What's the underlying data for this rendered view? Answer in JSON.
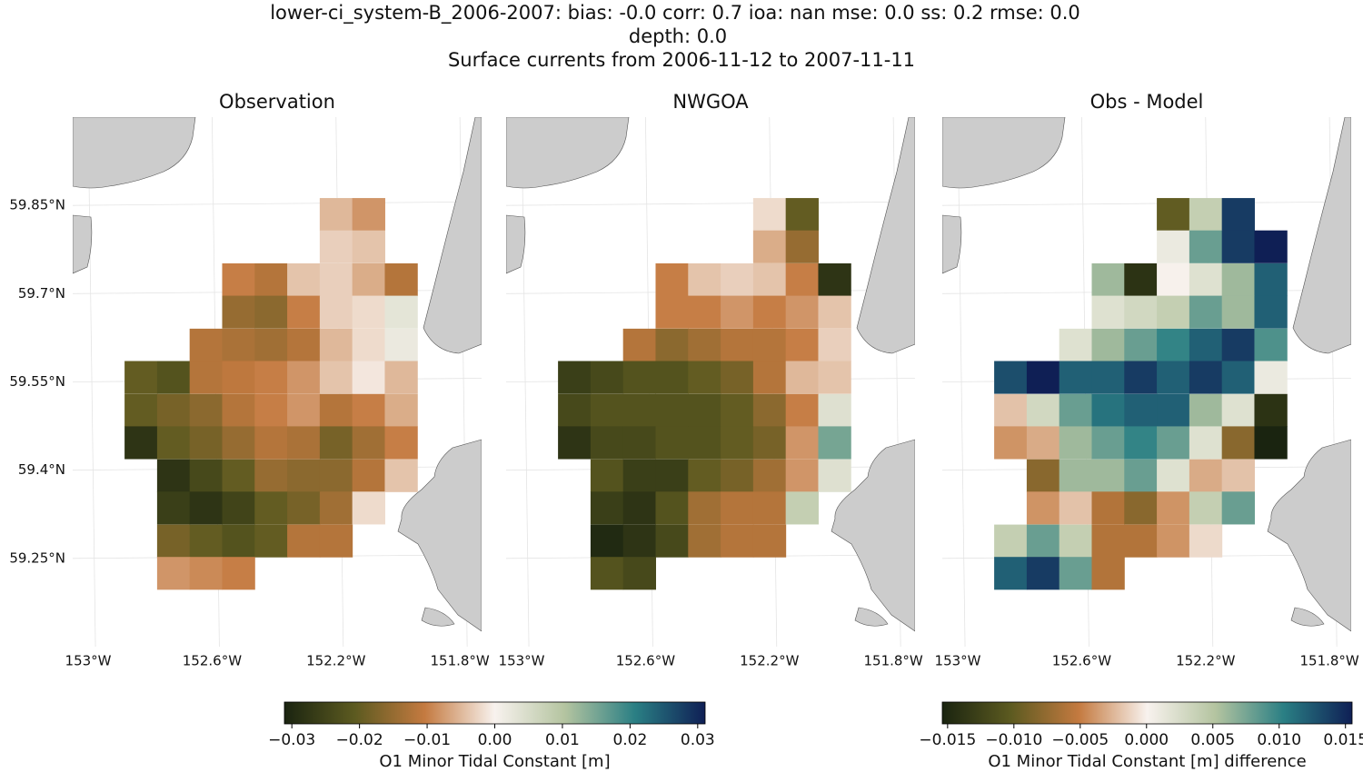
{
  "chart_data": {
    "type": "heatmap",
    "title_lines": [
      "lower-ci_system-B_2006-2007: bias: -0.0  corr: 0.7  ioa: nan  mse: 0.0  ss: 0.2  rmse: 0.0",
      "depth: 0.0",
      "Surface currents from 2006-11-12 to 2007-11-11"
    ],
    "xlim": [
      -153.05,
      -151.73
    ],
    "ylim": [
      59.1,
      60.0
    ],
    "xticks": [
      {
        "value": -153,
        "label": "153°W"
      },
      {
        "value": -152.6,
        "label": "152.6°W"
      },
      {
        "value": -152.2,
        "label": "152.2°W"
      },
      {
        "value": -151.8,
        "label": "151.8°W"
      }
    ],
    "yticks": [
      {
        "value": 59.25,
        "label": "59.25°N"
      },
      {
        "value": 59.4,
        "label": "59.4°N"
      },
      {
        "value": 59.55,
        "label": "59.55°N"
      },
      {
        "value": 59.7,
        "label": "59.7°N"
      },
      {
        "value": 59.85,
        "label": "59.85°N"
      }
    ],
    "grid": true,
    "lon": [
      -152.83,
      -152.725,
      -152.62,
      -152.515,
      -152.41,
      -152.305,
      -152.2,
      -152.095,
      -151.99
    ],
    "lat": [
      59.835,
      59.78,
      59.724,
      59.669,
      59.613,
      59.558,
      59.502,
      59.447,
      59.391,
      59.336,
      59.28,
      59.225
    ],
    "colormap": [
      "#1a2410",
      "#5c5a20",
      "#c47a40",
      "#f8f2ee",
      "#b4c4a0",
      "#2a7f84",
      "#0f1f55"
    ],
    "colorbars": [
      {
        "label": "O1 Minor Tidal Constant [m]",
        "clim": [
          -0.0311,
          0.0311
        ],
        "ticks": [
          {
            "value": -0.03,
            "label": "−0.03"
          },
          {
            "value": -0.02,
            "label": "−0.02"
          },
          {
            "value": -0.01,
            "label": "−0.01"
          },
          {
            "value": 0,
            "label": "0.00"
          },
          {
            "value": 0.01,
            "label": "0.01"
          },
          {
            "value": 0.02,
            "label": "0.02"
          },
          {
            "value": 0.03,
            "label": "0.03"
          }
        ]
      },
      {
        "label": "O1 Minor Tidal Constant [m] difference",
        "clim": [
          -0.0154,
          0.0155
        ],
        "ticks": [
          {
            "value": -0.015,
            "label": "−0.015"
          },
          {
            "value": -0.01,
            "label": "−0.010"
          },
          {
            "value": -0.005,
            "label": "−0.005"
          },
          {
            "value": 0,
            "label": "0.000"
          },
          {
            "value": 0.005,
            "label": "0.005"
          },
          {
            "value": 0.01,
            "label": "0.010"
          },
          {
            "value": 0.015,
            "label": "0.015"
          }
        ]
      }
    ],
    "panels": [
      {
        "title": "Observation",
        "colorbar": 0,
        "values": [
          [
            null,
            null,
            null,
            null,
            null,
            null,
            -0.005,
            -0.008,
            null
          ],
          [
            null,
            null,
            null,
            null,
            null,
            null,
            -0.003,
            -0.004,
            null
          ],
          [
            null,
            null,
            null,
            -0.01,
            -0.012,
            -0.004,
            -0.003,
            -0.006,
            -0.012
          ],
          [
            null,
            null,
            null,
            -0.015,
            -0.016,
            -0.01,
            -0.003,
            -0.002,
            0.003
          ],
          [
            null,
            null,
            -0.012,
            -0.013,
            -0.014,
            -0.012,
            -0.005,
            -0.002,
            0.002
          ],
          [
            -0.02,
            -0.022,
            -0.012,
            -0.011,
            -0.01,
            -0.008,
            -0.004,
            -0.001,
            -0.005
          ],
          [
            -0.02,
            -0.018,
            -0.016,
            -0.012,
            -0.01,
            -0.008,
            -0.012,
            -0.01,
            -0.006
          ],
          [
            -0.028,
            -0.02,
            -0.018,
            -0.015,
            -0.012,
            -0.013,
            -0.018,
            -0.014,
            -0.01
          ],
          [
            null,
            -0.028,
            -0.024,
            -0.02,
            -0.015,
            -0.016,
            -0.016,
            -0.012,
            -0.004
          ],
          [
            null,
            -0.026,
            -0.028,
            -0.025,
            -0.02,
            -0.018,
            -0.014,
            -0.002,
            null
          ],
          [
            null,
            -0.018,
            -0.02,
            -0.022,
            -0.02,
            -0.012,
            -0.012,
            null,
            null
          ],
          [
            null,
            -0.008,
            -0.009,
            -0.01,
            null,
            null,
            null,
            null,
            null
          ]
        ]
      },
      {
        "title": "NWGOA",
        "colorbar": 0,
        "values": [
          [
            null,
            null,
            null,
            null,
            null,
            null,
            -0.002,
            -0.02,
            null
          ],
          [
            null,
            null,
            null,
            null,
            null,
            null,
            -0.006,
            -0.015,
            null
          ],
          [
            null,
            null,
            null,
            -0.01,
            -0.004,
            -0.003,
            -0.004,
            -0.01,
            -0.028
          ],
          [
            null,
            null,
            null,
            -0.01,
            -0.01,
            -0.008,
            -0.01,
            -0.008,
            -0.004
          ],
          [
            null,
            null,
            -0.012,
            -0.016,
            -0.014,
            -0.012,
            -0.012,
            -0.01,
            -0.003
          ],
          [
            -0.026,
            -0.024,
            -0.022,
            -0.022,
            -0.02,
            -0.018,
            -0.012,
            -0.005,
            -0.004
          ],
          [
            -0.024,
            -0.022,
            -0.022,
            -0.022,
            -0.022,
            -0.02,
            -0.016,
            -0.01,
            0.004
          ],
          [
            -0.028,
            -0.024,
            -0.024,
            -0.022,
            -0.022,
            -0.02,
            -0.018,
            -0.008,
            0.015
          ],
          [
            null,
            -0.022,
            -0.026,
            -0.026,
            -0.02,
            -0.018,
            -0.014,
            -0.008,
            0.004
          ],
          [
            null,
            -0.026,
            -0.028,
            -0.022,
            -0.014,
            -0.012,
            -0.012,
            0.008,
            null
          ],
          [
            null,
            -0.03,
            -0.028,
            -0.024,
            -0.014,
            -0.012,
            -0.012,
            null,
            null
          ],
          [
            null,
            -0.022,
            -0.024,
            null,
            null,
            null,
            null,
            null,
            null
          ]
        ]
      },
      {
        "title": "Obs - Model",
        "colorbar": 1,
        "values": [
          [
            null,
            null,
            null,
            null,
            null,
            -0.01,
            0.004,
            0.014,
            null
          ],
          [
            null,
            null,
            null,
            null,
            null,
            0.001,
            0.008,
            0.014,
            0.016
          ],
          [
            null,
            null,
            null,
            0.006,
            -0.014,
            0.0,
            0.002,
            0.006,
            0.012
          ],
          [
            null,
            null,
            null,
            0.002,
            0.003,
            0.004,
            0.008,
            0.006,
            0.012
          ],
          [
            null,
            null,
            0.002,
            0.006,
            0.008,
            0.01,
            0.012,
            0.014,
            0.009
          ],
          [
            0.013,
            0.016,
            0.012,
            0.012,
            0.014,
            0.012,
            0.014,
            0.012,
            0.001
          ],
          [
            -0.002,
            0.003,
            0.008,
            0.011,
            0.012,
            0.012,
            0.006,
            0.002,
            -0.014
          ],
          [
            -0.004,
            -0.003,
            0.006,
            0.008,
            0.01,
            0.008,
            0.002,
            -0.008,
            -0.016
          ],
          [
            null,
            -0.008,
            0.006,
            0.006,
            0.008,
            0.002,
            -0.003,
            -0.002,
            null
          ],
          [
            null,
            -0.004,
            -0.002,
            -0.006,
            -0.008,
            -0.004,
            0.004,
            0.008,
            null
          ],
          [
            0.004,
            0.008,
            0.004,
            -0.006,
            -0.006,
            -0.004,
            -0.001,
            null,
            null
          ],
          [
            0.012,
            0.014,
            0.008,
            -0.006,
            null,
            null,
            null,
            null,
            null
          ]
        ]
      }
    ]
  }
}
